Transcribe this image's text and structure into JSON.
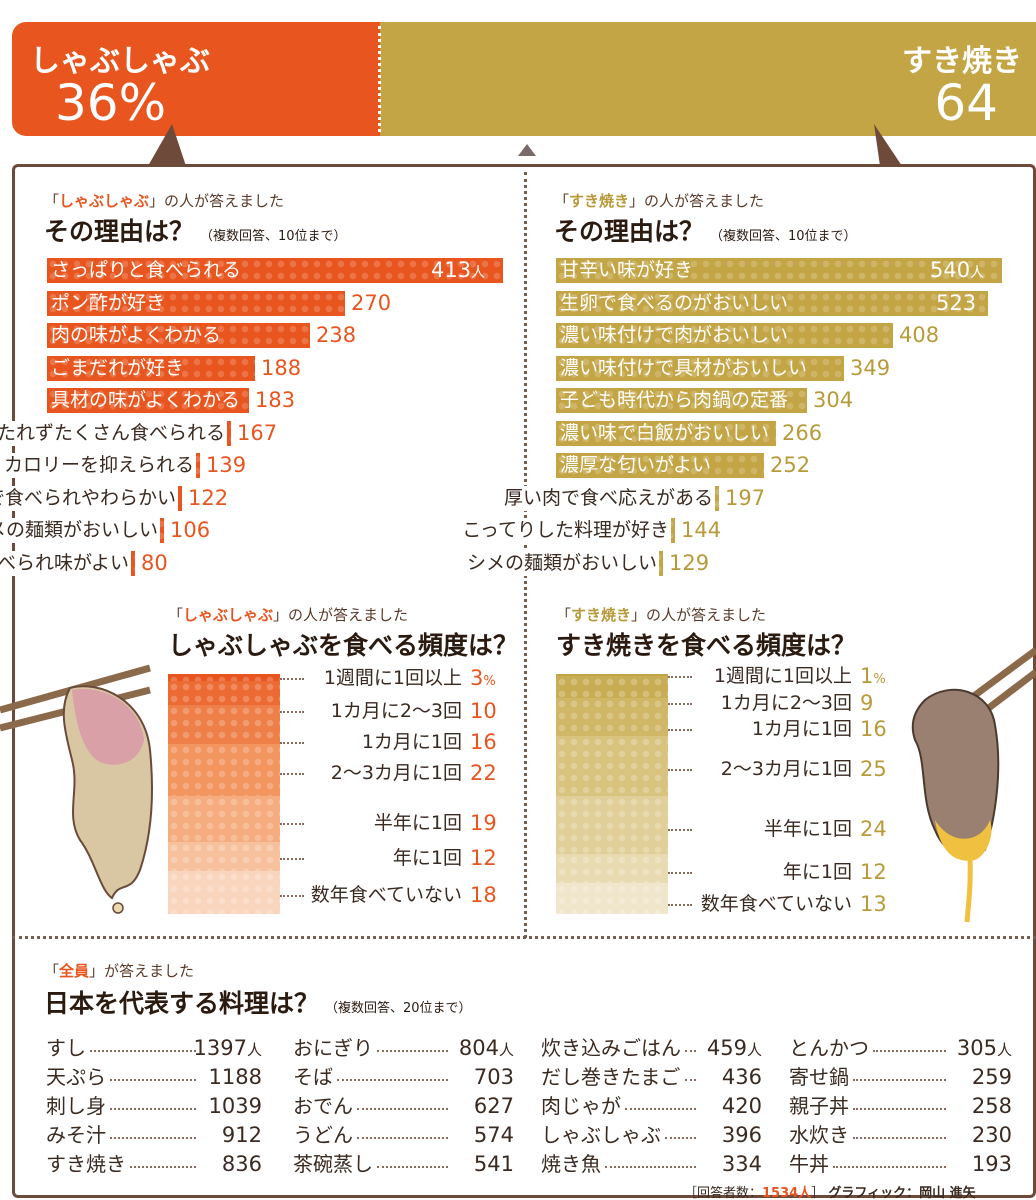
{
  "header": {
    "left_title": "しゃぶしゃぶ",
    "left_value": "36%",
    "right_title": "すき焼き",
    "right_value": "64"
  },
  "colors": {
    "shabu": "#e8551f",
    "suki": "#c4a545",
    "text": "#3a2a20"
  },
  "shabu_reasons": {
    "kicker_prefix": "「",
    "kicker_name": "しゃぶしゃぶ",
    "kicker_suffix": "」の人が答えました",
    "title": "その理由は？",
    "note": "（複数回答、10位まで）",
    "unit": "人"
  },
  "suki_reasons": {
    "kicker_prefix": "「",
    "kicker_name": "すき焼き",
    "kicker_suffix": "」の人が答えました",
    "title": "その理由は？",
    "note": "（複数回答、10位まで）",
    "unit": "人"
  },
  "shabu_freq": {
    "kicker_prefix": "「",
    "kicker_name": "しゃぶしゃぶ",
    "kicker_suffix": "」の人が答えました",
    "title": "しゃぶしゃぶを食べる頻度は？",
    "unit": "%"
  },
  "suki_freq": {
    "kicker_prefix": "「",
    "kicker_name": "すき焼き",
    "kicker_suffix": "」の人が答えました",
    "title": "すき焼きを食べる頻度は？",
    "unit": "%"
  },
  "dishes": {
    "kicker_prefix": "「",
    "kicker_name": "全員",
    "kicker_suffix": "」が答えました",
    "title": "日本を代表する料理は？",
    "note": "（複数回答、20位まで）",
    "unit": "人"
  },
  "footer": {
    "prefix": "［回答者数：",
    "count": "1534人",
    "suffix": "］",
    "credit": "グラフィック：岡山 進矢"
  },
  "chart_data": [
    {
      "type": "bar",
      "title": "その理由は？",
      "series_group": "しゃぶしゃぶ",
      "categories": [
        "さっぱりと食べられる",
        "ポン酢が好き",
        "肉の味がよくわかる",
        "ごまだれが好き",
        "具材の味がよくわかる",
        "もたれずたくさん食べられる",
        "カロリーを抑えられる",
        "半生で食べられやわらかい",
        "シメの麺類がおいしい",
        "半生で食べられ味がよい"
      ],
      "values": [
        413,
        270,
        238,
        188,
        183,
        167,
        139,
        122,
        106,
        80
      ],
      "unit": "人",
      "xlim": [
        0,
        413
      ]
    },
    {
      "type": "bar",
      "title": "その理由は？",
      "series_group": "すき焼き",
      "categories": [
        "甘辛い味が好き",
        "生卵で食べるのがおいしい",
        "濃い味付けで肉がおいしい",
        "濃い味付けで具材がおいしい",
        "子ども時代から肉鍋の定番",
        "濃い味で白飯がおいしい",
        "濃厚な匂いがよい",
        "厚い肉で食べ応えがある",
        "こってりした料理が好き",
        "シメの麺類がおいしい"
      ],
      "values": [
        540,
        523,
        408,
        349,
        304,
        266,
        252,
        197,
        144,
        129
      ],
      "unit": "人",
      "xlim": [
        0,
        540
      ]
    },
    {
      "type": "bar",
      "title": "しゃぶしゃぶを食べる頻度は？",
      "stacked": true,
      "categories": [
        "1週間に1回以上",
        "1カ月に2～3回",
        "1カ月に1回",
        "2～3カ月に1回",
        "半年に1回",
        "年に1回",
        "数年食べていない"
      ],
      "values": [
        3,
        10,
        16,
        22,
        19,
        12,
        18
      ],
      "unit": "%"
    },
    {
      "type": "bar",
      "title": "すき焼きを食べる頻度は？",
      "stacked": true,
      "categories": [
        "1週間に1回以上",
        "1カ月に2～3回",
        "1カ月に1回",
        "2～3カ月に1回",
        "半年に1回",
        "年に1回",
        "数年食べていない"
      ],
      "values": [
        1,
        9,
        16,
        25,
        24,
        12,
        13
      ],
      "unit": "%"
    },
    {
      "type": "table",
      "title": "日本を代表する料理は？",
      "unit": "人",
      "categories": [
        "すし",
        "天ぷら",
        "刺し身",
        "みそ汁",
        "すき焼き",
        "おにぎり",
        "そば",
        "おでん",
        "うどん",
        "茶碗蒸し",
        "炊き込みごはん",
        "だし巻きたまご",
        "肉じゃが",
        "しゃぶしゃぶ",
        "焼き魚",
        "とんかつ",
        "寄せ鍋",
        "親子丼",
        "水炊き",
        "牛丼"
      ],
      "values": [
        1397,
        1188,
        1039,
        912,
        836,
        804,
        703,
        627,
        574,
        541,
        459,
        436,
        420,
        396,
        334,
        305,
        259,
        258,
        230,
        193
      ]
    }
  ]
}
